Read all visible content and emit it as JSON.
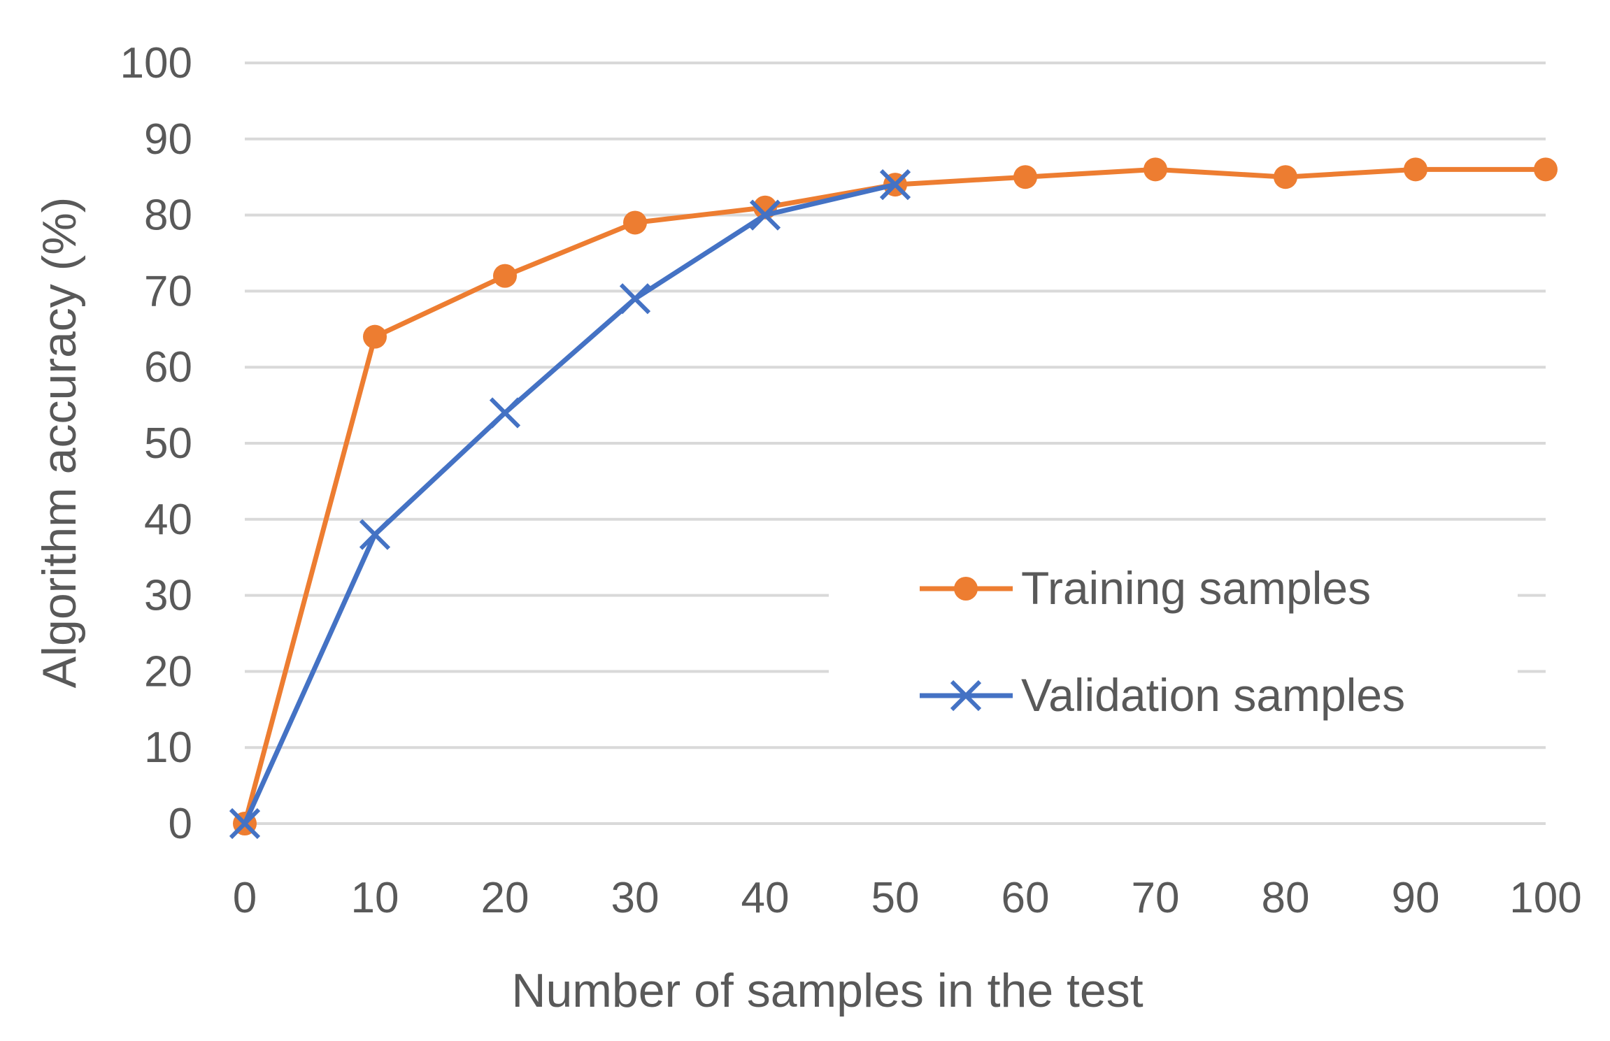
{
  "chart_data": {
    "type": "line",
    "title": "",
    "xlabel": "Number of samples in the test",
    "ylabel": "Algorithm accuracy (%)",
    "x": [
      0,
      10,
      20,
      30,
      40,
      50,
      60,
      70,
      80,
      90,
      100
    ],
    "xlim": [
      0,
      100
    ],
    "ylim": [
      0,
      100
    ],
    "xticks": [
      "0",
      "10",
      "20",
      "30",
      "40",
      "50",
      "60",
      "70",
      "80",
      "90",
      "100"
    ],
    "yticks": [
      "0",
      "10",
      "20",
      "30",
      "40",
      "50",
      "60",
      "70",
      "80",
      "90",
      "100"
    ],
    "grid": true,
    "legend_position": "bottom-right",
    "series": [
      {
        "name": "Training samples",
        "marker": "circle",
        "color": "#ED7D31",
        "x": [
          0,
          10,
          20,
          30,
          40,
          50,
          60,
          70,
          80,
          90,
          100
        ],
        "values": [
          0,
          64,
          72,
          79,
          81,
          84,
          85,
          86,
          85,
          86,
          86
        ]
      },
      {
        "name": "Validation samples",
        "marker": "x",
        "color": "#4472C4",
        "x": [
          0,
          10,
          20,
          30,
          40,
          50
        ],
        "values": [
          0,
          38,
          54,
          69,
          80,
          84
        ]
      }
    ]
  }
}
